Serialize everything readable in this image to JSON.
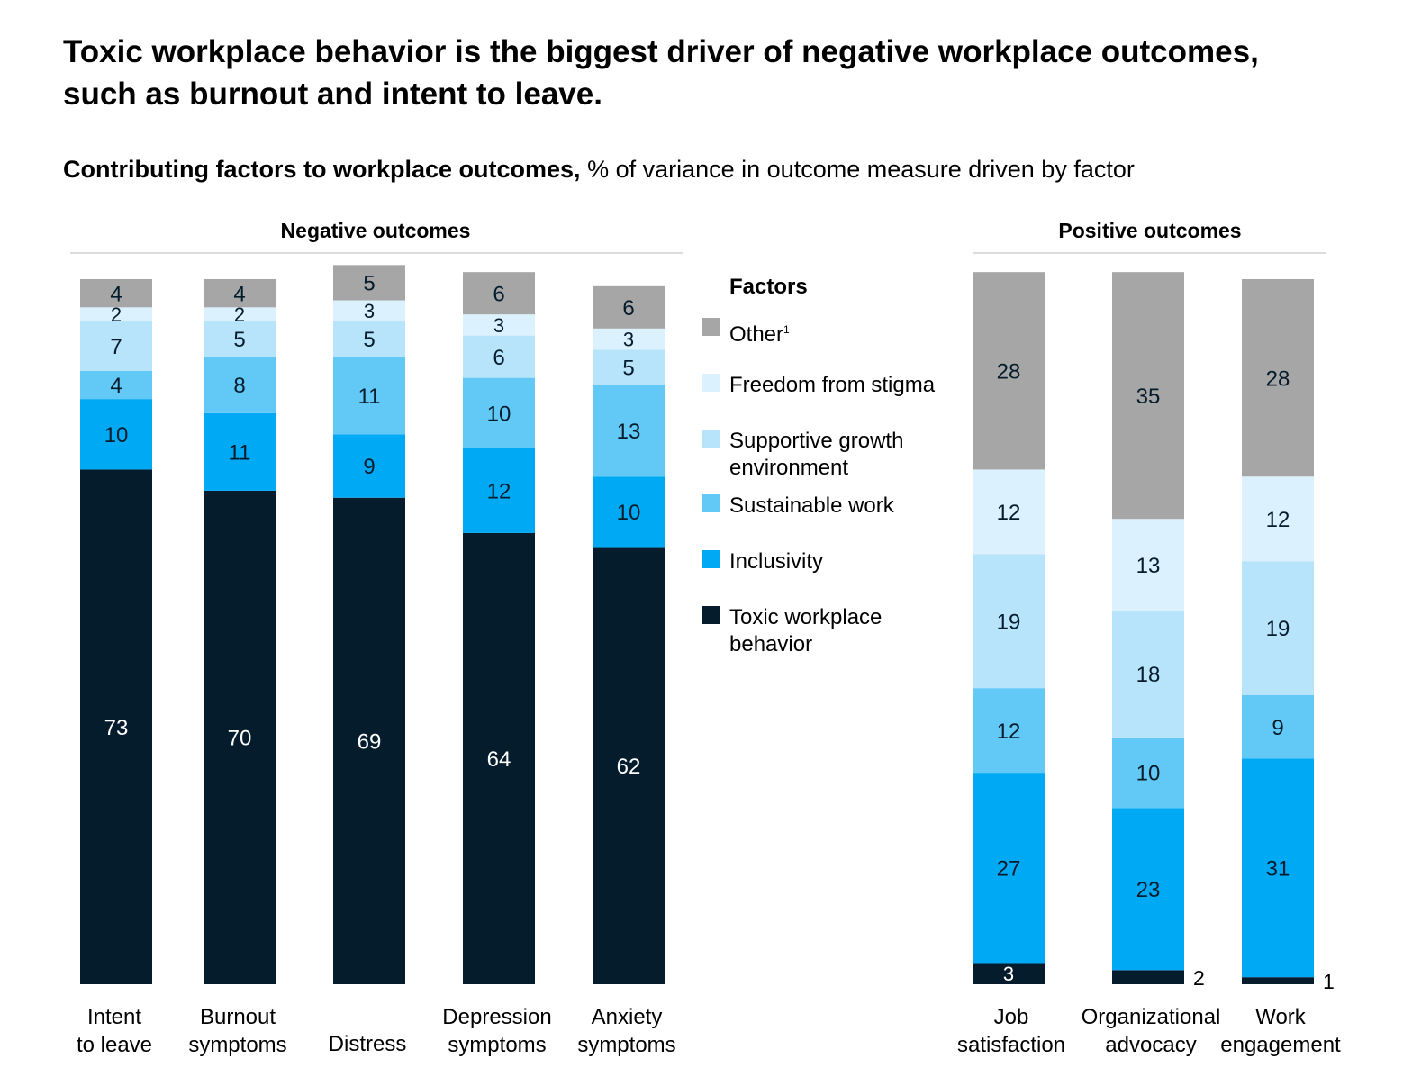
{
  "title": "Toxic workplace behavior is the biggest driver of negative workplace outcomes, such as burnout and intent to leave.",
  "subtitle_bold": "Contributing factors to workplace outcomes,",
  "subtitle_rest": " % of variance in outcome measure driven by factor",
  "legend": {
    "title": "Factors",
    "items": [
      {
        "label": "Other",
        "footnote": "1",
        "color": "#a6a6a6"
      },
      {
        "label": "Freedom from stigma",
        "color": "#dbf1fd"
      },
      {
        "label": "Supportive growth environment",
        "color": "#b7e4fb"
      },
      {
        "label": "Sustainable work",
        "color": "#62c9f6"
      },
      {
        "label": "Inclusivity",
        "color": "#00a9f4"
      },
      {
        "label": "Toxic workplace behavior",
        "color": "#051c2c"
      }
    ]
  },
  "chart_data": [
    {
      "type": "bar",
      "stacked": true,
      "group_title": "Negative outcomes",
      "categories": [
        [
          "Intent",
          "to leave"
        ],
        [
          "Burnout",
          "symptoms"
        ],
        [
          "Distress"
        ],
        [
          "Depression",
          "symptoms"
        ],
        [
          "Anxiety",
          "symptoms"
        ]
      ],
      "series": [
        {
          "name": "Toxic workplace behavior",
          "values": [
            73,
            70,
            69,
            64,
            62
          ]
        },
        {
          "name": "Inclusivity",
          "values": [
            10,
            11,
            9,
            12,
            10
          ]
        },
        {
          "name": "Sustainable work",
          "values": [
            4,
            8,
            11,
            10,
            13
          ]
        },
        {
          "name": "Supportive growth environment",
          "values": [
            7,
            5,
            5,
            6,
            5
          ]
        },
        {
          "name": "Freedom from stigma",
          "values": [
            2,
            2,
            3,
            3,
            3
          ]
        },
        {
          "name": "Other",
          "values": [
            4,
            4,
            5,
            6,
            6
          ]
        }
      ],
      "ylim": [
        0,
        100
      ]
    },
    {
      "type": "bar",
      "stacked": true,
      "group_title": "Positive outcomes",
      "categories": [
        [
          "Job",
          "satisfaction"
        ],
        [
          "Organizational",
          "advocacy"
        ],
        [
          "Work",
          "engagement"
        ]
      ],
      "series": [
        {
          "name": "Toxic workplace behavior",
          "values": [
            3,
            2,
            1
          ]
        },
        {
          "name": "Inclusivity",
          "values": [
            27,
            23,
            31
          ]
        },
        {
          "name": "Sustainable work",
          "values": [
            12,
            10,
            9
          ]
        },
        {
          "name": "Supportive growth environment",
          "values": [
            19,
            18,
            19
          ]
        },
        {
          "name": "Freedom from stigma",
          "values": [
            12,
            13,
            12
          ]
        },
        {
          "name": "Other",
          "values": [
            28,
            35,
            28
          ]
        }
      ],
      "ylim": [
        0,
        100
      ]
    }
  ]
}
